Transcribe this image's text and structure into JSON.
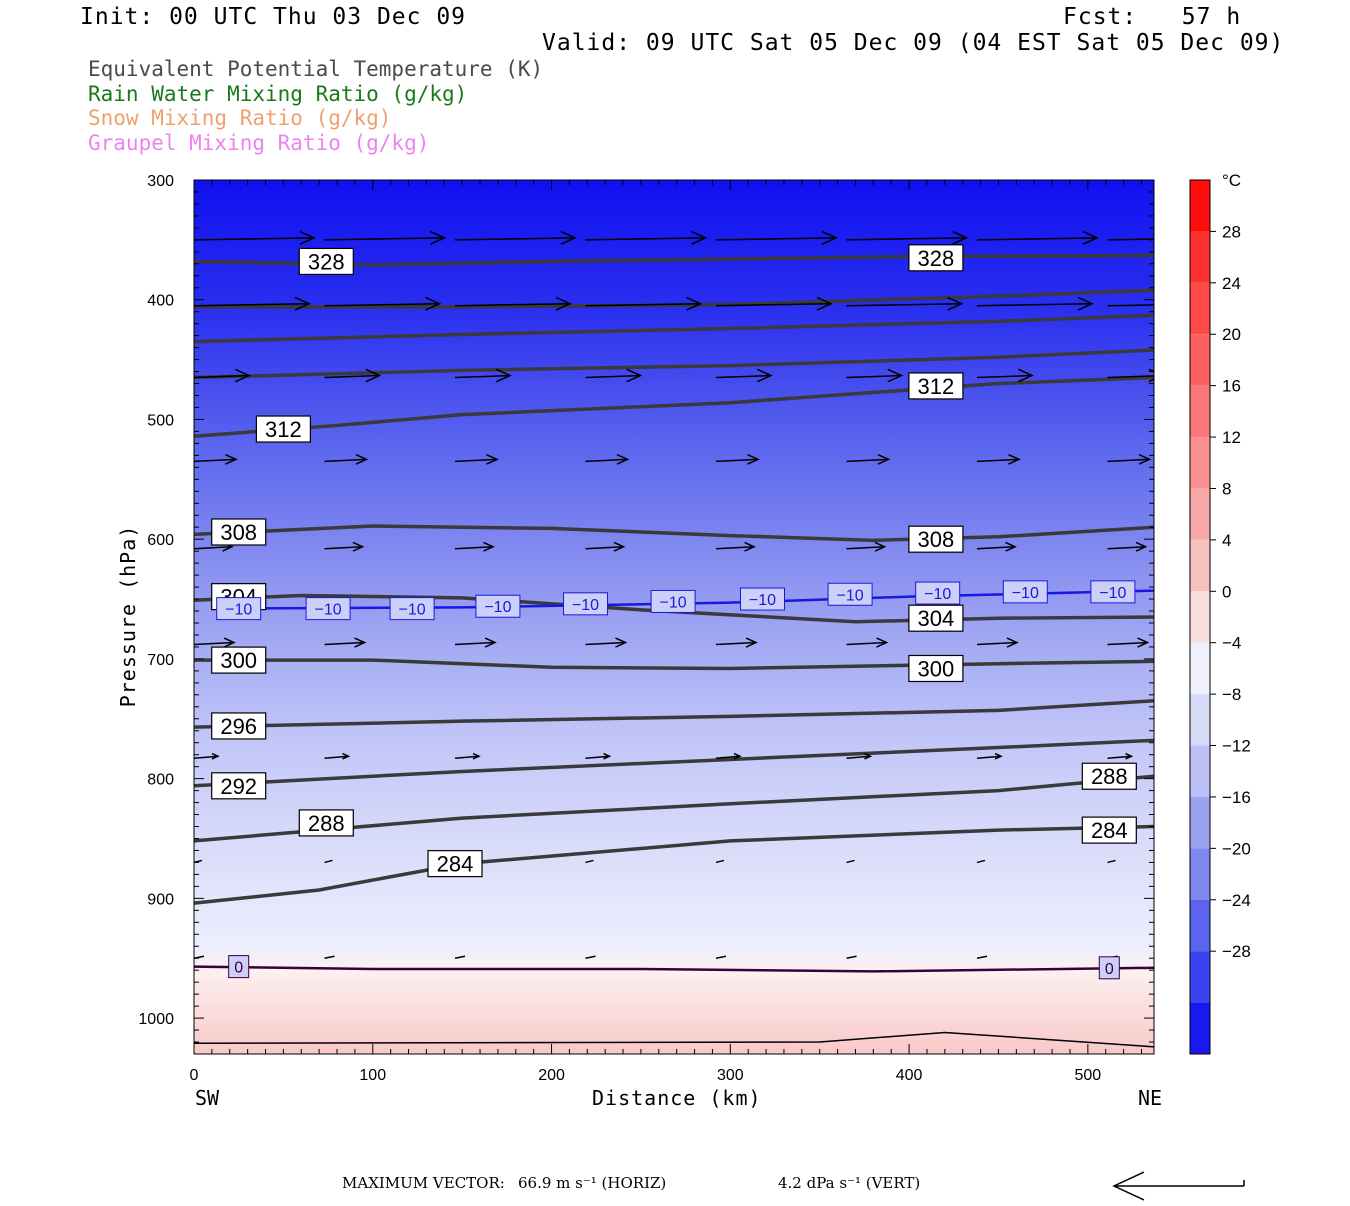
{
  "header": {
    "init": "Init: 00 UTC Thu 03 Dec 09",
    "fcst": "Fcst:   57 h",
    "valid": "Valid: 09 UTC Sat 05 Dec 09 (04 EST Sat 05 Dec 09)"
  },
  "legend": {
    "theta_e": {
      "label": "Equivalent Potential Temperature (K)",
      "color": "#4a4a4a"
    },
    "rain": {
      "label": "Rain Water Mixing Ratio (g/kg)",
      "color": "#1a7a1a"
    },
    "snow": {
      "label": "Snow Mixing Ratio (g/kg)",
      "color": "#f0a070"
    },
    "graupel": {
      "label": "Graupel Mixing Ratio (g/kg)",
      "color": "#ee82ee"
    }
  },
  "footer": {
    "max_vector_label": "MAXIMUM VECTOR:",
    "horiz": "66.9 m s⁻¹ (HORIZ)",
    "vert": "4.2 dPa s⁻¹ (VERT)"
  },
  "chart_data": {
    "type": "cross-section contour",
    "xlabel": "Distance (km)",
    "ylabel": "Pressure (hPa)",
    "x_ticks": [
      0,
      100,
      200,
      300,
      400,
      500
    ],
    "y_ticks": [
      300,
      400,
      500,
      600,
      700,
      800,
      900,
      1000
    ],
    "xlim": [
      0,
      537
    ],
    "ylim": [
      1030,
      300
    ],
    "left_end_label": "SW",
    "right_end_label": "NE",
    "colorbar": {
      "unit": "°C",
      "labels": [
        "28",
        "24",
        "20",
        "16",
        "12",
        "8",
        "4",
        "0",
        "−4",
        "−8",
        "−12",
        "−16",
        "−20",
        "−24",
        "−28"
      ]
    },
    "isotherms": [
      {
        "value": -10,
        "label": "−10",
        "color": "#1818e0",
        "points": [
          [
            10,
            658
          ],
          [
            150,
            657
          ],
          [
            300,
            653
          ],
          [
            400,
            648
          ],
          [
            537,
            643
          ]
        ],
        "labels_at": [
          [
            25,
            658
          ],
          [
            75,
            658
          ],
          [
            122,
            658
          ],
          [
            170,
            656
          ],
          [
            219,
            654
          ],
          [
            268,
            652
          ],
          [
            318,
            650
          ],
          [
            367,
            646
          ],
          [
            416,
            645
          ],
          [
            465,
            644
          ],
          [
            514,
            644
          ]
        ]
      },
      {
        "value": 0,
        "label": "0",
        "color": "#3a003a",
        "points": [
          [
            0,
            957
          ],
          [
            100,
            959
          ],
          [
            250,
            959
          ],
          [
            380,
            961
          ],
          [
            537,
            958
          ]
        ],
        "labels_at": [
          [
            25,
            957
          ],
          [
            512,
            958
          ]
        ]
      }
    ],
    "theta_e_contours": [
      {
        "value": 328,
        "points": [
          [
            0,
            368
          ],
          [
            100,
            371
          ],
          [
            200,
            368
          ],
          [
            300,
            366
          ],
          [
            400,
            364
          ],
          [
            537,
            363
          ]
        ],
        "labels_at": [
          [
            74,
            368
          ],
          [
            415,
            365
          ]
        ]
      },
      {
        "value": null,
        "points": [
          [
            0,
            406
          ],
          [
            150,
            406
          ],
          [
            300,
            404
          ],
          [
            450,
            397
          ],
          [
            537,
            392
          ]
        ],
        "labels_at": []
      },
      {
        "value": null,
        "points": [
          [
            0,
            435
          ],
          [
            150,
            429
          ],
          [
            300,
            424
          ],
          [
            450,
            418
          ],
          [
            537,
            413
          ]
        ],
        "labels_at": []
      },
      {
        "value": null,
        "points": [
          [
            0,
            465
          ],
          [
            150,
            459
          ],
          [
            300,
            455
          ],
          [
            450,
            448
          ],
          [
            537,
            442
          ]
        ],
        "labels_at": []
      },
      {
        "value": 312,
        "points": [
          [
            0,
            514
          ],
          [
            80,
            505
          ],
          [
            150,
            496
          ],
          [
            300,
            486
          ],
          [
            450,
            470
          ],
          [
            537,
            465
          ]
        ],
        "labels_at": [
          [
            50,
            508
          ],
          [
            415,
            472
          ]
        ]
      },
      {
        "value": 308,
        "points": [
          [
            0,
            596
          ],
          [
            100,
            589
          ],
          [
            200,
            591
          ],
          [
            300,
            597
          ],
          [
            380,
            601
          ],
          [
            450,
            598
          ],
          [
            537,
            590
          ]
        ],
        "labels_at": [
          [
            25,
            594
          ],
          [
            415,
            600
          ]
        ]
      },
      {
        "value": 304,
        "points": [
          [
            0,
            651
          ],
          [
            60,
            647
          ],
          [
            150,
            649
          ],
          [
            250,
            659
          ],
          [
            370,
            669
          ],
          [
            450,
            666
          ],
          [
            537,
            665
          ]
        ],
        "labels_at": [
          [
            25,
            648
          ],
          [
            415,
            666
          ]
        ]
      },
      {
        "value": 300,
        "points": [
          [
            0,
            701
          ],
          [
            100,
            701
          ],
          [
            200,
            707
          ],
          [
            300,
            708
          ],
          [
            450,
            704
          ],
          [
            537,
            702
          ]
        ],
        "labels_at": [
          [
            25,
            701
          ],
          [
            415,
            708
          ]
        ]
      },
      {
        "value": 296,
        "points": [
          [
            0,
            757
          ],
          [
            150,
            752
          ],
          [
            300,
            748
          ],
          [
            450,
            743
          ],
          [
            537,
            735
          ]
        ],
        "labels_at": [
          [
            25,
            756
          ]
        ]
      },
      {
        "value": 292,
        "points": [
          [
            0,
            806
          ],
          [
            150,
            794
          ],
          [
            300,
            784
          ],
          [
            450,
            774
          ],
          [
            537,
            768
          ]
        ],
        "labels_at": [
          [
            25,
            806
          ]
        ]
      },
      {
        "value": 288,
        "points": [
          [
            0,
            852
          ],
          [
            150,
            833
          ],
          [
            300,
            821
          ],
          [
            450,
            810
          ],
          [
            537,
            798
          ]
        ],
        "labels_at": [
          [
            74,
            837
          ],
          [
            512,
            798
          ]
        ]
      },
      {
        "value": 284,
        "points": [
          [
            0,
            904
          ],
          [
            70,
            893
          ],
          [
            150,
            871
          ],
          [
            300,
            852
          ],
          [
            450,
            843
          ],
          [
            537,
            840
          ]
        ],
        "labels_at": [
          [
            146,
            871
          ],
          [
            512,
            843
          ]
        ]
      }
    ],
    "wind_arrow_rows": [
      350,
      405,
      465,
      535,
      608,
      688,
      783,
      870,
      950
    ],
    "wind_arrow_x": [
      0,
      73,
      146,
      219,
      292,
      365,
      438,
      511
    ]
  }
}
